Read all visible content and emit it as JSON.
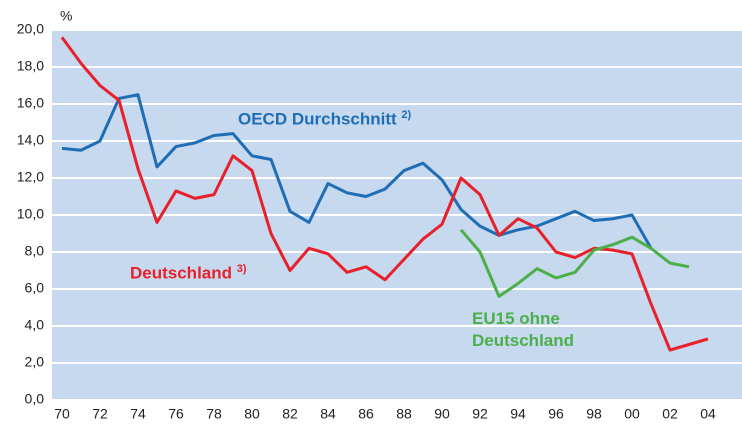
{
  "chart_data": {
    "type": "line",
    "y_unit": "%",
    "categories": [
      "70",
      null,
      "72",
      null,
      "74",
      null,
      "76",
      null,
      "78",
      null,
      "80",
      null,
      "82",
      null,
      "84",
      null,
      "86",
      null,
      "88",
      null,
      "90",
      null,
      "92",
      null,
      "94",
      null,
      "96",
      null,
      "98",
      null,
      "00",
      null,
      "02",
      null,
      "04",
      null
    ],
    "series": [
      {
        "name": "OECD Durchschnitt",
        "note": "2)",
        "color": "#1f6db5",
        "values": [
          13.6,
          13.5,
          14.0,
          16.3,
          16.5,
          12.6,
          13.7,
          13.9,
          14.3,
          14.4,
          13.2,
          13.0,
          10.2,
          9.6,
          11.7,
          11.2,
          11.0,
          11.4,
          12.4,
          12.8,
          11.9,
          10.3,
          9.4,
          8.9,
          9.2,
          9.4,
          9.8,
          10.2,
          9.7,
          9.8,
          10.0,
          8.2,
          null,
          null,
          null,
          null
        ]
      },
      {
        "name": "Deutschland",
        "note": "3)",
        "color": "#e8202a",
        "values": [
          19.6,
          18.2,
          17.0,
          16.2,
          12.5,
          9.6,
          11.3,
          10.9,
          11.1,
          13.2,
          12.4,
          9.0,
          7.0,
          8.2,
          7.9,
          6.9,
          7.2,
          6.5,
          7.6,
          8.7,
          9.5,
          12.0,
          11.1,
          8.9,
          9.8,
          9.3,
          8.0,
          7.7,
          8.2,
          8.1,
          7.9,
          5.2,
          2.7,
          3.0,
          3.3,
          null
        ]
      },
      {
        "name": "EU15 ohne Deutschland",
        "color": "#4caf4a",
        "values": [
          null,
          null,
          null,
          null,
          null,
          null,
          null,
          null,
          null,
          null,
          null,
          null,
          null,
          null,
          null,
          null,
          null,
          null,
          null,
          null,
          null,
          9.2,
          8.0,
          5.6,
          6.3,
          7.1,
          6.6,
          6.9,
          8.1,
          8.4,
          8.8,
          8.2,
          7.4,
          7.2,
          null,
          null
        ]
      }
    ],
    "ylim": [
      0,
      20
    ],
    "yticks": [
      {
        "value": 0,
        "label": "0,0"
      },
      {
        "value": 2,
        "label": "2,0"
      },
      {
        "value": 4,
        "label": "4,0"
      },
      {
        "value": 6,
        "label": "6,0"
      },
      {
        "value": 8,
        "label": "8,0"
      },
      {
        "value": 10,
        "label": "10,0"
      },
      {
        "value": 12,
        "label": "12,0"
      },
      {
        "value": 14,
        "label": "14,0"
      },
      {
        "value": 16,
        "label": "16,0"
      },
      {
        "value": 18,
        "label": "18,0"
      },
      {
        "value": 20,
        "label": "20,0"
      }
    ],
    "grid": true
  }
}
